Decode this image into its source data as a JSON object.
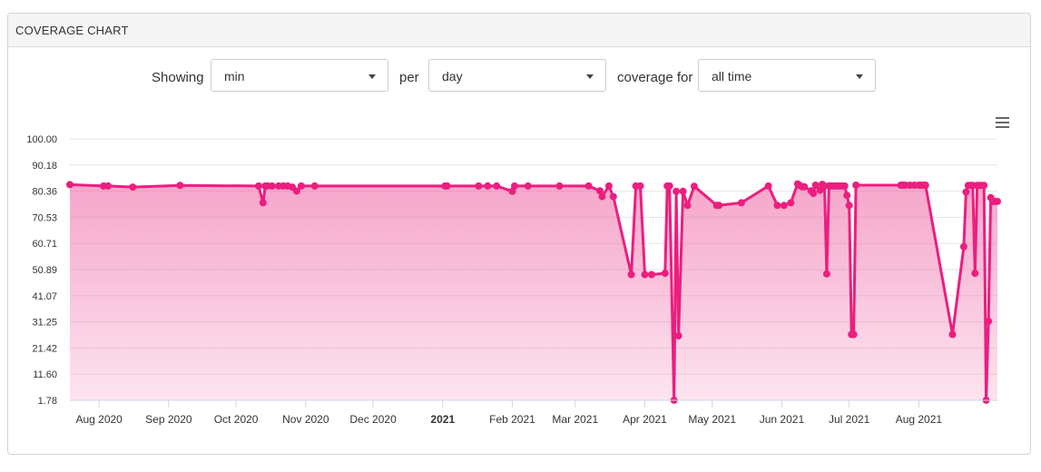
{
  "panel": {
    "title": "COVERAGE CHART"
  },
  "controls": {
    "showing_label": "Showing",
    "showing_value": "min",
    "per_label": "per",
    "per_value": "day",
    "coverage_label": "coverage for",
    "coverage_value": "all time"
  },
  "icons": {
    "menu": "hamburger-menu-icon",
    "dropdown": "chevron-down-icon"
  },
  "colors": {
    "series": "#ec1e7f",
    "fill": "#f06ba8",
    "grid": "#e6e6e6"
  },
  "chart_data": {
    "type": "area",
    "ylim": [
      1.78,
      100
    ],
    "y_ticks": [
      "100.00",
      "90.18",
      "80.36",
      "70.53",
      "60.71",
      "50.89",
      "41.07",
      "31.25",
      "21.42",
      "11.60",
      "1.78"
    ],
    "x_ticks": [
      "Aug 2020",
      "Sep 2020",
      "Oct 2020",
      "Nov 2020",
      "Dec 2020",
      "2021",
      "Feb 2021",
      "Mar 2021",
      "Apr 2021",
      "May 2021",
      "Jun 2021",
      "Jul 2021",
      "Aug 2021"
    ],
    "x_tick_days": [
      13,
      44,
      74,
      105,
      135,
      166,
      197,
      225,
      256,
      286,
      317,
      347,
      378
    ],
    "series": [
      {
        "x": [
          0,
          15,
          17,
          28,
          49,
          84,
          86,
          87,
          88,
          90,
          93,
          95,
          97,
          99,
          101,
          103,
          109,
          167,
          168,
          182,
          186,
          190,
          197,
          198,
          204,
          218,
          231,
          236,
          237,
          240,
          242,
          250,
          252,
          254,
          256,
          259,
          265,
          266,
          267,
          269,
          270,
          271,
          273,
          275,
          278,
          288,
          289,
          299,
          311,
          315,
          318,
          321,
          324,
          325,
          326,
          327,
          330,
          331,
          332,
          334,
          335,
          336,
          337,
          338,
          339,
          340,
          341,
          342,
          343,
          344,
          345,
          346,
          347,
          348,
          349,
          350,
          370,
          371,
          372,
          374,
          376,
          378,
          379,
          380,
          381,
          393,
          398,
          399,
          400,
          401,
          402,
          403,
          404,
          405,
          406,
          407,
          408,
          409,
          410,
          411,
          412,
          413
        ],
        "y": [
          82.8,
          82.3,
          82.3,
          81.9,
          82.5,
          82.3,
          76.0,
          82.3,
          82.3,
          82.3,
          82.3,
          82.3,
          82.3,
          81.9,
          80.4,
          82.3,
          82.3,
          82.3,
          82.3,
          82.3,
          82.3,
          82.3,
          80.3,
          82.3,
          82.3,
          82.3,
          82.3,
          80.5,
          78.3,
          82.3,
          78.3,
          49.0,
          82.3,
          82.3,
          49.0,
          49.0,
          49.5,
          82.3,
          82.3,
          1.8,
          80.3,
          26.0,
          80.3,
          75.0,
          82.2,
          75.0,
          75.0,
          76.0,
          82.3,
          75.0,
          75.0,
          76.0,
          83.1,
          82.5,
          82.0,
          82.0,
          80.5,
          79.5,
          82.6,
          80.7,
          82.9,
          82.3,
          49.3,
          82.3,
          82.3,
          82.3,
          82.3,
          82.3,
          82.3,
          82.3,
          82.3,
          78.8,
          75.0,
          26.5,
          26.5,
          82.6,
          82.6,
          82.6,
          82.6,
          82.6,
          82.6,
          82.6,
          82.6,
          82.6,
          82.6,
          26.5,
          59.5,
          80.0,
          82.5,
          82.5,
          82.5,
          49.5,
          82.5,
          82.5,
          82.5,
          82.5,
          1.8,
          31.5,
          77.9,
          76.5,
          76.5,
          76.5
        ],
        "note_x_origin_day": "2020-07-19"
      }
    ]
  }
}
